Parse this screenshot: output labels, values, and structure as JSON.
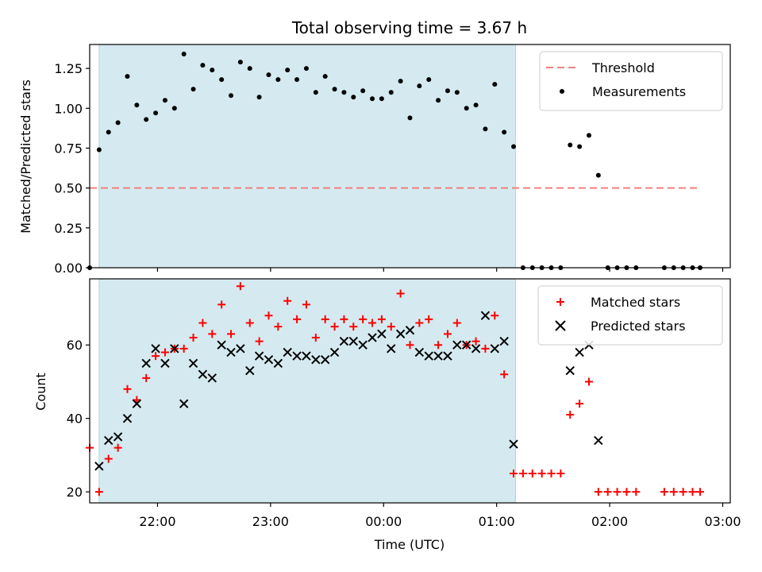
{
  "chart_data": {
    "type": "scatter",
    "title": "Total observing time = 3.67 h",
    "xlabel": "Time (UTC)",
    "xlim": [
      "21:24",
      "03:04"
    ],
    "x_ticks": [
      "22:00",
      "23:00",
      "00:00",
      "01:00",
      "02:00",
      "03:00"
    ],
    "shaded_interval": [
      "21:29",
      "01:10"
    ],
    "shaded_color": "#d4eaf0",
    "panels": [
      {
        "ylabel": "Matched/Predicted stars",
        "ylim": [
          0,
          1.4
        ],
        "y_ticks": [
          "0.00",
          "0.25",
          "0.50",
          "0.75",
          "1.00",
          "1.25"
        ],
        "legend_position": "upper-right",
        "threshold": {
          "name": "Threshold",
          "value": 0.5,
          "x_start": "21:24",
          "x_end": "02:48",
          "color": "#f08080"
        },
        "series": [
          {
            "name": "Measurements",
            "color": "#000000",
            "marker": "dot",
            "points": [
              [
                "21:24",
                0.0
              ],
              [
                "21:29",
                0.74
              ],
              [
                "21:34",
                0.85
              ],
              [
                "21:39",
                0.91
              ],
              [
                "21:44",
                1.2
              ],
              [
                "21:49",
                1.02
              ],
              [
                "21:54",
                0.93
              ],
              [
                "21:59",
                0.97
              ],
              [
                "22:04",
                1.05
              ],
              [
                "22:09",
                1.0
              ],
              [
                "22:14",
                1.34
              ],
              [
                "22:19",
                1.12
              ],
              [
                "22:24",
                1.27
              ],
              [
                "22:29",
                1.24
              ],
              [
                "22:34",
                1.18
              ],
              [
                "22:39",
                1.08
              ],
              [
                "22:44",
                1.29
              ],
              [
                "22:49",
                1.25
              ],
              [
                "22:54",
                1.07
              ],
              [
                "22:59",
                1.21
              ],
              [
                "23:04",
                1.18
              ],
              [
                "23:09",
                1.24
              ],
              [
                "23:14",
                1.18
              ],
              [
                "23:19",
                1.25
              ],
              [
                "23:24",
                1.1
              ],
              [
                "23:29",
                1.2
              ],
              [
                "23:34",
                1.12
              ],
              [
                "23:39",
                1.1
              ],
              [
                "23:44",
                1.07
              ],
              [
                "23:49",
                1.11
              ],
              [
                "23:54",
                1.06
              ],
              [
                "23:59",
                1.06
              ],
              [
                "00:04",
                1.1
              ],
              [
                "00:09",
                1.17
              ],
              [
                "00:14",
                0.94
              ],
              [
                "00:19",
                1.14
              ],
              [
                "00:24",
                1.18
              ],
              [
                "00:29",
                1.05
              ],
              [
                "00:34",
                1.11
              ],
              [
                "00:39",
                1.1
              ],
              [
                "00:44",
                1.0
              ],
              [
                "00:49",
                1.02
              ],
              [
                "00:54",
                0.87
              ],
              [
                "00:59",
                1.15
              ],
              [
                "01:04",
                0.85
              ],
              [
                "01:09",
                0.76
              ],
              [
                "01:14",
                0.0
              ],
              [
                "01:19",
                0.0
              ],
              [
                "01:24",
                0.0
              ],
              [
                "01:29",
                0.0
              ],
              [
                "01:34",
                0.0
              ],
              [
                "01:39",
                0.77
              ],
              [
                "01:44",
                0.76
              ],
              [
                "01:49",
                0.83
              ],
              [
                "01:54",
                0.58
              ],
              [
                "01:59",
                0.0
              ],
              [
                "02:04",
                0.0
              ],
              [
                "02:09",
                0.0
              ],
              [
                "02:14",
                0.0
              ],
              [
                "02:29",
                0.0
              ],
              [
                "02:34",
                0.0
              ],
              [
                "02:39",
                0.0
              ],
              [
                "02:44",
                0.0
              ],
              [
                "02:48",
                0.0
              ]
            ]
          }
        ]
      },
      {
        "ylabel": "Count",
        "ylim": [
          17,
          78
        ],
        "y_ticks": [
          "20",
          "40",
          "60"
        ],
        "legend_position": "upper-right",
        "series": [
          {
            "name": "Matched stars",
            "color": "#ff0000",
            "marker": "plus",
            "points": [
              [
                "21:24",
                32
              ],
              [
                "21:29",
                20
              ],
              [
                "21:34",
                29
              ],
              [
                "21:39",
                32
              ],
              [
                "21:44",
                48
              ],
              [
                "21:49",
                45
              ],
              [
                "21:54",
                51
              ],
              [
                "21:59",
                57
              ],
              [
                "22:04",
                58
              ],
              [
                "22:09",
                59
              ],
              [
                "22:14",
                59
              ],
              [
                "22:19",
                62
              ],
              [
                "22:24",
                66
              ],
              [
                "22:29",
                63
              ],
              [
                "22:34",
                71
              ],
              [
                "22:39",
                63
              ],
              [
                "22:44",
                76
              ],
              [
                "22:49",
                66
              ],
              [
                "22:54",
                61
              ],
              [
                "22:59",
                68
              ],
              [
                "23:04",
                65
              ],
              [
                "23:09",
                72
              ],
              [
                "23:14",
                67
              ],
              [
                "23:19",
                71
              ],
              [
                "23:24",
                62
              ],
              [
                "23:29",
                67
              ],
              [
                "23:34",
                65
              ],
              [
                "23:39",
                67
              ],
              [
                "23:44",
                65
              ],
              [
                "23:49",
                67
              ],
              [
                "23:54",
                66
              ],
              [
                "23:59",
                67
              ],
              [
                "00:04",
                65
              ],
              [
                "00:09",
                74
              ],
              [
                "00:14",
                60
              ],
              [
                "00:19",
                66
              ],
              [
                "00:24",
                67
              ],
              [
                "00:29",
                60
              ],
              [
                "00:34",
                63
              ],
              [
                "00:39",
                66
              ],
              [
                "00:44",
                60
              ],
              [
                "00:49",
                61
              ],
              [
                "00:54",
                59
              ],
              [
                "00:59",
                68
              ],
              [
                "01:04",
                52
              ],
              [
                "01:09",
                25
              ],
              [
                "01:14",
                25
              ],
              [
                "01:19",
                25
              ],
              [
                "01:24",
                25
              ],
              [
                "01:29",
                25
              ],
              [
                "01:34",
                25
              ],
              [
                "01:39",
                41
              ],
              [
                "01:44",
                44
              ],
              [
                "01:49",
                50
              ],
              [
                "01:54",
                20
              ],
              [
                "01:59",
                20
              ],
              [
                "02:04",
                20
              ],
              [
                "02:09",
                20
              ],
              [
                "02:14",
                20
              ],
              [
                "02:29",
                20
              ],
              [
                "02:34",
                20
              ],
              [
                "02:39",
                20
              ],
              [
                "02:44",
                20
              ],
              [
                "02:48",
                20
              ]
            ]
          },
          {
            "name": "Predicted stars",
            "color": "#000000",
            "marker": "x",
            "points": [
              [
                "21:29",
                27
              ],
              [
                "21:34",
                34
              ],
              [
                "21:39",
                35
              ],
              [
                "21:44",
                40
              ],
              [
                "21:49",
                44
              ],
              [
                "21:54",
                55
              ],
              [
                "21:59",
                59
              ],
              [
                "22:04",
                55
              ],
              [
                "22:09",
                59
              ],
              [
                "22:14",
                44
              ],
              [
                "22:19",
                55
              ],
              [
                "22:24",
                52
              ],
              [
                "22:29",
                51
              ],
              [
                "22:34",
                60
              ],
              [
                "22:39",
                58
              ],
              [
                "22:44",
                59
              ],
              [
                "22:49",
                53
              ],
              [
                "22:54",
                57
              ],
              [
                "22:59",
                56
              ],
              [
                "23:04",
                55
              ],
              [
                "23:09",
                58
              ],
              [
                "23:14",
                57
              ],
              [
                "23:19",
                57
              ],
              [
                "23:24",
                56
              ],
              [
                "23:29",
                56
              ],
              [
                "23:34",
                58
              ],
              [
                "23:39",
                61
              ],
              [
                "23:44",
                61
              ],
              [
                "23:49",
                60
              ],
              [
                "23:54",
                62
              ],
              [
                "23:59",
                63
              ],
              [
                "00:04",
                59
              ],
              [
                "00:09",
                63
              ],
              [
                "00:14",
                64
              ],
              [
                "00:19",
                58
              ],
              [
                "00:24",
                57
              ],
              [
                "00:29",
                57
              ],
              [
                "00:34",
                57
              ],
              [
                "00:39",
                60
              ],
              [
                "00:44",
                60
              ],
              [
                "00:49",
                59
              ],
              [
                "00:54",
                68
              ],
              [
                "00:59",
                59
              ],
              [
                "01:04",
                61
              ],
              [
                "01:09",
                33
              ],
              [
                "01:39",
                53
              ],
              [
                "01:44",
                58
              ],
              [
                "01:49",
                60
              ],
              [
                "01:54",
                34
              ]
            ]
          }
        ]
      }
    ]
  }
}
